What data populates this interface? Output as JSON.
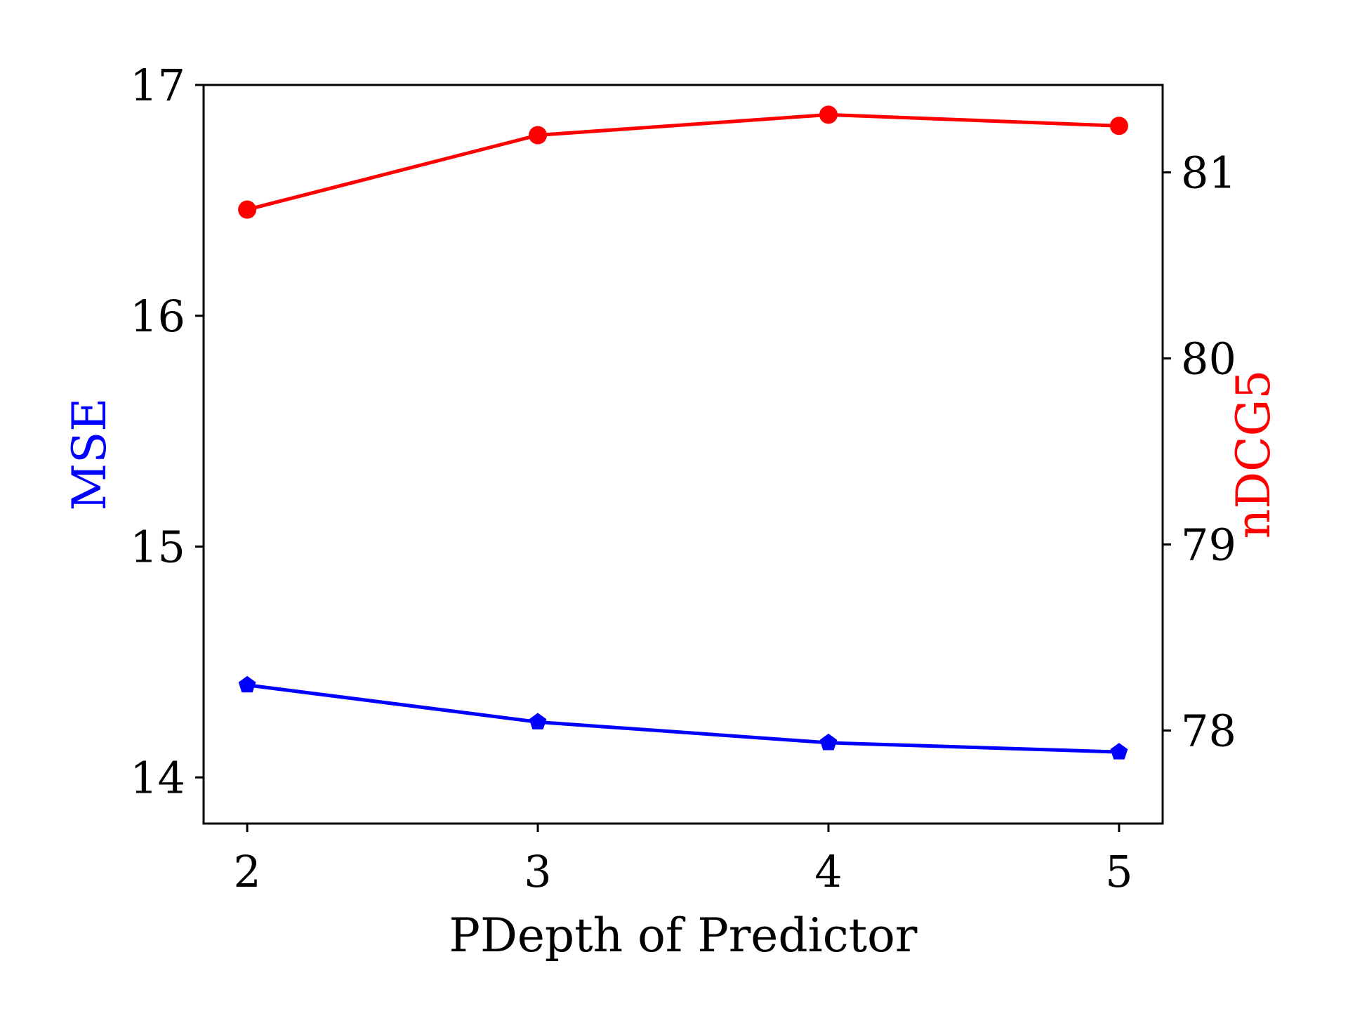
{
  "chart_data": {
    "type": "line",
    "title": "",
    "xlabel": "PDepth of Predictor",
    "x": [
      2,
      3,
      4,
      5
    ],
    "xticks": [
      "2",
      "3",
      "4",
      "5"
    ],
    "xlim": [
      1.85,
      5.15
    ],
    "y_left": {
      "label": "MSE",
      "color": "#0000ff",
      "ticks": [
        "14",
        "15",
        "16",
        "17"
      ],
      "ylim": [
        13.8,
        17.0
      ]
    },
    "y_right": {
      "label": "nDCG5",
      "color": "#ff0000",
      "ticks": [
        "78",
        "79",
        "80",
        "81"
      ],
      "ylim": [
        77.5,
        81.47
      ]
    },
    "series": [
      {
        "axis": "left",
        "color": "#0000ff",
        "marker": "pentagon",
        "values": [
          14.4,
          14.24,
          14.15,
          14.11
        ]
      },
      {
        "axis": "right",
        "color": "#ff0000",
        "marker": "circle",
        "values": [
          80.8,
          81.2,
          81.31,
          81.25
        ]
      }
    ],
    "grid": false,
    "legend": "none"
  }
}
